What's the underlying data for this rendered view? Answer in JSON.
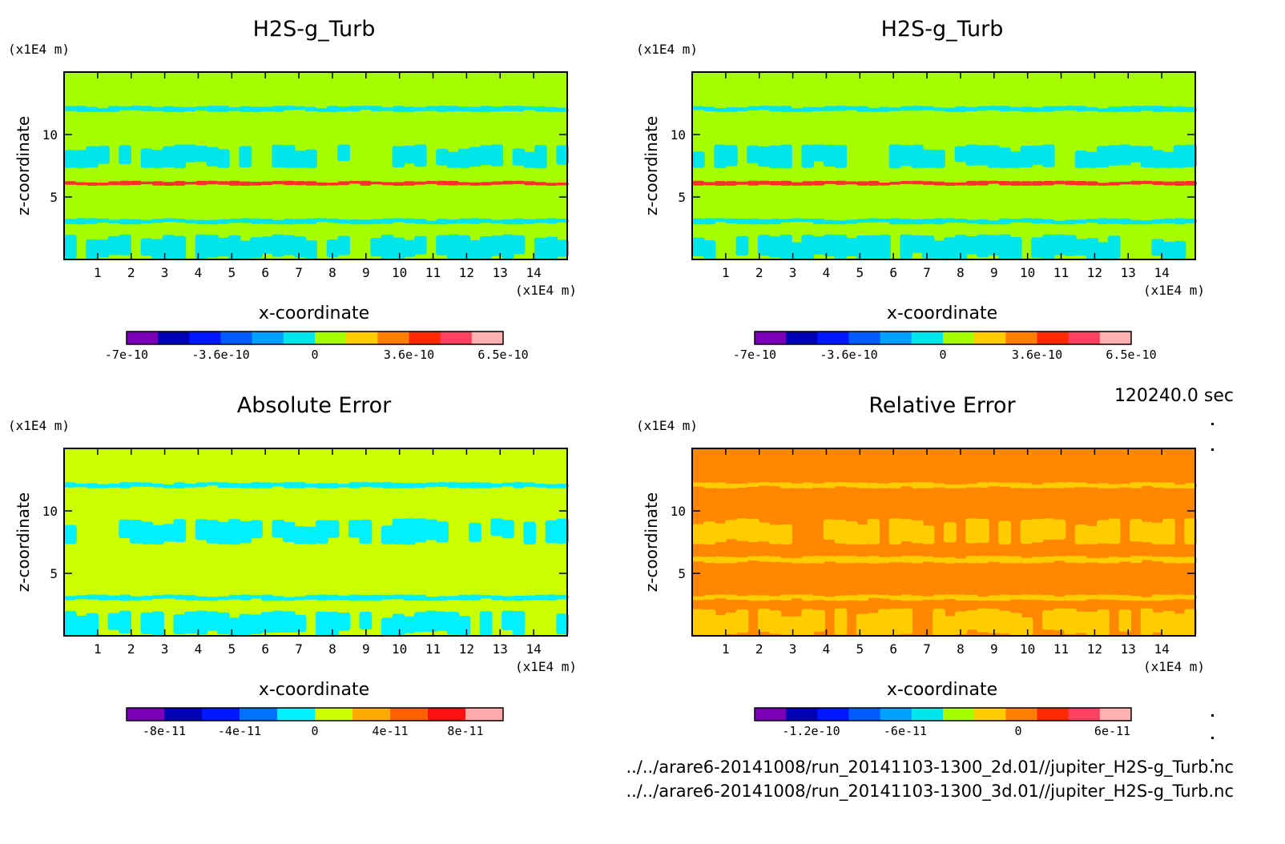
{
  "time_label": "120240.0 sec",
  "files": [
    "../../arare6-20141008/run_20141103-1300_2d.01//jupiter_H2S-g_Turb.nc",
    "../../arare6-20141008/run_20141103-1300_3d.01//jupiter_H2S-g_Turb.nc"
  ],
  "chart_data": [
    {
      "type": "heatmap",
      "title": "H2S-g_Turb",
      "xlabel": "x-coordinate",
      "ylabel": "z-coordinate",
      "x_unit": "(x1E4 m)",
      "y_unit": "(x1E4 m)",
      "xlim": [
        0,
        15
      ],
      "ylim": [
        0,
        15
      ],
      "x_ticks": [
        1,
        2,
        3,
        4,
        5,
        6,
        7,
        8,
        9,
        10,
        11,
        12,
        13,
        14
      ],
      "y_ticks": [
        5,
        10
      ],
      "background_color": "#a5ff00",
      "regions": [
        {
          "color": "#00e5ea",
          "bands": [
            [
              0,
              2
            ],
            [
              2.8,
              3.3
            ],
            [
              7.3,
              9.2
            ],
            [
              11.8,
              12.3
            ]
          ]
        },
        {
          "color": "#ff3030",
          "bands": [
            [
              5.9,
              6.3
            ]
          ]
        }
      ],
      "colorbar": {
        "colors": [
          "#7b00b5",
          "#0000b5",
          "#0018ff",
          "#005cff",
          "#00a0ff",
          "#00e5ea",
          "#a5ff00",
          "#ffcc00",
          "#ff8000",
          "#ff2800",
          "#ff4060",
          "#ffb0b0"
        ],
        "tick_labels": [
          "-7e-10",
          "-3.6e-10",
          "0",
          "3.6e-10",
          "6.5e-10"
        ],
        "tick_fracs": [
          0,
          0.25,
          0.5,
          0.75,
          1
        ]
      }
    },
    {
      "type": "heatmap",
      "title": "H2S-g_Turb",
      "xlabel": "x-coordinate",
      "ylabel": "z-coordinate",
      "x_unit": "(x1E4 m)",
      "y_unit": "(x1E4 m)",
      "xlim": [
        0,
        15
      ],
      "ylim": [
        0,
        15
      ],
      "x_ticks": [
        1,
        2,
        3,
        4,
        5,
        6,
        7,
        8,
        9,
        10,
        11,
        12,
        13,
        14
      ],
      "y_ticks": [
        5,
        10
      ],
      "background_color": "#a5ff00",
      "regions": [
        {
          "color": "#00e5ea",
          "bands": [
            [
              0,
              2
            ],
            [
              2.8,
              3.3
            ],
            [
              7.3,
              9.2
            ],
            [
              11.8,
              12.3
            ]
          ]
        },
        {
          "color": "#ff3030",
          "bands": [
            [
              5.9,
              6.3
            ]
          ]
        }
      ],
      "colorbar": {
        "colors": [
          "#7b00b5",
          "#0000b5",
          "#0018ff",
          "#005cff",
          "#00a0ff",
          "#00e5ea",
          "#a5ff00",
          "#ffcc00",
          "#ff8000",
          "#ff2800",
          "#ff4060",
          "#ffb0b0"
        ],
        "tick_labels": [
          "-7e-10",
          "-3.6e-10",
          "0",
          "3.6e-10",
          "6.5e-10"
        ],
        "tick_fracs": [
          0,
          0.25,
          0.5,
          0.75,
          1
        ]
      }
    },
    {
      "type": "heatmap",
      "title": "Absolute Error",
      "xlabel": "x-coordinate",
      "ylabel": "z-coordinate",
      "x_unit": "(x1E4 m)",
      "y_unit": "(x1E4 m)",
      "xlim": [
        0,
        15
      ],
      "ylim": [
        0,
        15
      ],
      "x_ticks": [
        1,
        2,
        3,
        4,
        5,
        6,
        7,
        8,
        9,
        10,
        11,
        12,
        13,
        14
      ],
      "y_ticks": [
        5,
        10
      ],
      "background_color": "#ccff00",
      "regions": [
        {
          "color": "#00f0ff",
          "bands": [
            [
              0,
              2
            ],
            [
              2.8,
              3.3
            ],
            [
              7.3,
              9.4
            ],
            [
              11.8,
              12.3
            ]
          ]
        }
      ],
      "colorbar": {
        "colors": [
          "#7b00b5",
          "#0000b5",
          "#0018ff",
          "#0070ff",
          "#00f0ff",
          "#ccff00",
          "#ffaa00",
          "#ff6000",
          "#ff1010",
          "#ffaaaa"
        ],
        "tick_labels": [
          "-8e-11",
          "-4e-11",
          "0",
          "4e-11",
          "8e-11"
        ],
        "tick_fracs": [
          0.1,
          0.3,
          0.5,
          0.7,
          0.9
        ]
      }
    },
    {
      "type": "heatmap",
      "title": "Relative Error",
      "xlabel": "x-coordinate",
      "ylabel": "z-coordinate",
      "x_unit": "(x1E4 m)",
      "y_unit": "(x1E4 m)",
      "xlim": [
        0,
        15
      ],
      "ylim": [
        0,
        15
      ],
      "x_ticks": [
        1,
        2,
        3,
        4,
        5,
        6,
        7,
        8,
        9,
        10,
        11,
        12,
        13,
        14
      ],
      "y_ticks": [
        5,
        10
      ],
      "background_color": "#ff8800",
      "regions": [
        {
          "color": "#ffcc00",
          "bands": [
            [
              0,
              2.2
            ],
            [
              2.8,
              3.3
            ],
            [
              5.8,
              6.4
            ],
            [
              7.3,
              9.4
            ],
            [
              11.8,
              12.3
            ]
          ]
        }
      ],
      "colorbar": {
        "colors": [
          "#7b00b5",
          "#0000b5",
          "#0018ff",
          "#005cff",
          "#00a0ff",
          "#00e5ea",
          "#a5ff00",
          "#ffcc00",
          "#ff8000",
          "#ff2800",
          "#ff4060",
          "#ffb0b0"
        ],
        "tick_labels": [
          "-1.2e-10",
          "-6e-11",
          "0",
          "6e-11"
        ],
        "tick_fracs": [
          0.15,
          0.4,
          0.7,
          0.95
        ]
      }
    }
  ]
}
